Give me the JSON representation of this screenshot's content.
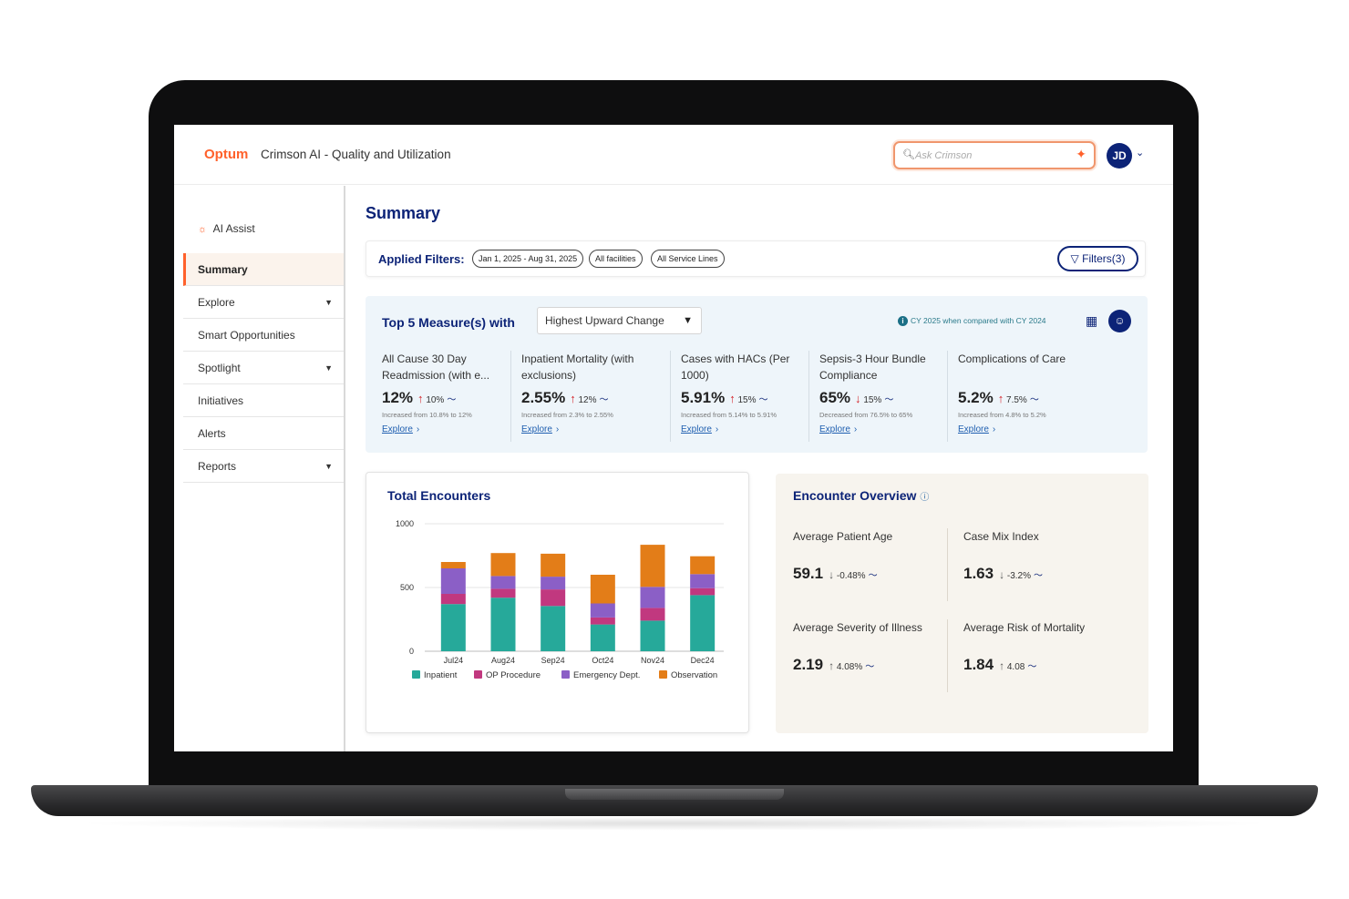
{
  "app": {
    "brand": "Optum",
    "title": "Crimson AI - Quality and Utilization",
    "search_placeholder": "Ask Crimson",
    "user_initials": "JD"
  },
  "sidebar": {
    "ai_assist": "AI Assist",
    "items": [
      {
        "label": "Summary",
        "active": true,
        "has_caret": false
      },
      {
        "label": "Explore",
        "active": false,
        "has_caret": true
      },
      {
        "label": "Smart Opportunities",
        "active": false,
        "has_caret": false
      },
      {
        "label": "Spotlight",
        "active": false,
        "has_caret": true
      },
      {
        "label": "Initiatives",
        "active": false,
        "has_caret": false
      },
      {
        "label": "Alerts",
        "active": false,
        "has_caret": false
      },
      {
        "label": "Reports",
        "active": false,
        "has_caret": true
      }
    ]
  },
  "main": {
    "title": "Summary",
    "applied_filters_label": "Applied Filters:",
    "filter_chips": [
      "Jan 1, 2025 - Aug 31, 2025",
      "All facilities",
      "All Service Lines"
    ],
    "filters_button": "Filters(3)"
  },
  "measures": {
    "title": "Top 5 Measure(s) with",
    "select_value": "Highest Upward Change",
    "note": "CY 2025 when compared with CY 2024",
    "explore_label": "Explore",
    "items": [
      {
        "label": "All Cause 30 Day Readmission (with e...",
        "value": "12%",
        "direction": "up",
        "change": "10%",
        "sub": "Increased from 10.8% to 12%"
      },
      {
        "label": "Inpatient Mortality (with exclusions)",
        "value": "2.55%",
        "direction": "up",
        "change": "12%",
        "sub": "Increased from 2.3% to 2.55%"
      },
      {
        "label": "Cases with HACs (Per 1000)",
        "value": "5.91%",
        "direction": "up",
        "change": "15%",
        "sub": "Increased from 5.14% to 5.91%"
      },
      {
        "label": "Sepsis-3 Hour Bundle Compliance",
        "value": "65%",
        "direction": "down",
        "change": "15%",
        "sub": "Decreased from 76.5% to 65%"
      },
      {
        "label": "Complications of Care",
        "value": "5.2%",
        "direction": "up",
        "change": "7.5%",
        "sub": "Increased from 4.8% to 5.2%"
      }
    ]
  },
  "total_encounters": {
    "title": "Total Encounters",
    "chart_data": {
      "type": "bar",
      "stacked": true,
      "categories": [
        "Jul24",
        "Aug24",
        "Sep24",
        "Oct24",
        "Nov24",
        "Dec24"
      ],
      "series": [
        {
          "name": "Inpatient",
          "color": "#26a99a",
          "values": [
            370,
            420,
            355,
            210,
            240,
            440
          ]
        },
        {
          "name": "OP Procedure",
          "color": "#c1387f",
          "values": [
            80,
            70,
            130,
            55,
            100,
            55
          ]
        },
        {
          "name": "Emergency Dept.",
          "color": "#8b5fc6",
          "values": [
            200,
            100,
            100,
            110,
            165,
            110
          ]
        },
        {
          "name": "Observation",
          "color": "#e37d18",
          "values": [
            50,
            180,
            180,
            225,
            330,
            140
          ]
        }
      ],
      "yticks": [
        0,
        500,
        1000
      ],
      "ylim": [
        0,
        1000
      ],
      "grid": true,
      "legend_position": "bottom"
    }
  },
  "overview": {
    "title": "Encounter Overview",
    "metrics": [
      {
        "label": "Average Patient Age",
        "value": "59.1",
        "direction": "down",
        "change": "-0.48%"
      },
      {
        "label": "Case Mix Index",
        "value": "1.63",
        "direction": "down",
        "change": "-3.2%"
      },
      {
        "label": "Average Severity of Illness",
        "value": "2.19",
        "direction": "up",
        "change": "4.08%"
      },
      {
        "label": "Average Risk of Mortality",
        "value": "1.84",
        "direction": "up",
        "change": "4.08"
      }
    ]
  }
}
